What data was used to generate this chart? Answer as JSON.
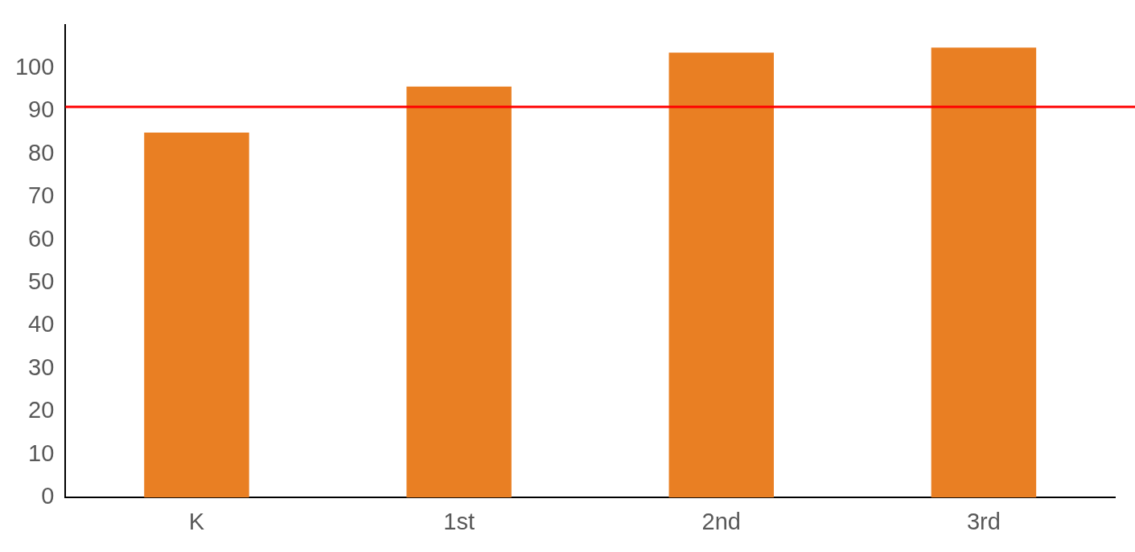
{
  "chart_data": {
    "type": "bar",
    "categories": [
      "K",
      "1st",
      "2nd",
      "3rd"
    ],
    "series": [
      {
        "color": "#e97f23",
        "values": [
          85,
          95.7,
          103.6,
          104.8
        ]
      }
    ],
    "ylim": [
      0,
      110
    ],
    "yticks": [
      0,
      10,
      20,
      30,
      40,
      50,
      60,
      70,
      80,
      90,
      100
    ],
    "grid": false,
    "legend": false,
    "ref_lines": [
      {
        "axis": "y",
        "value": 91,
        "color": "#ff0000",
        "line_style": "solid"
      }
    ]
  }
}
